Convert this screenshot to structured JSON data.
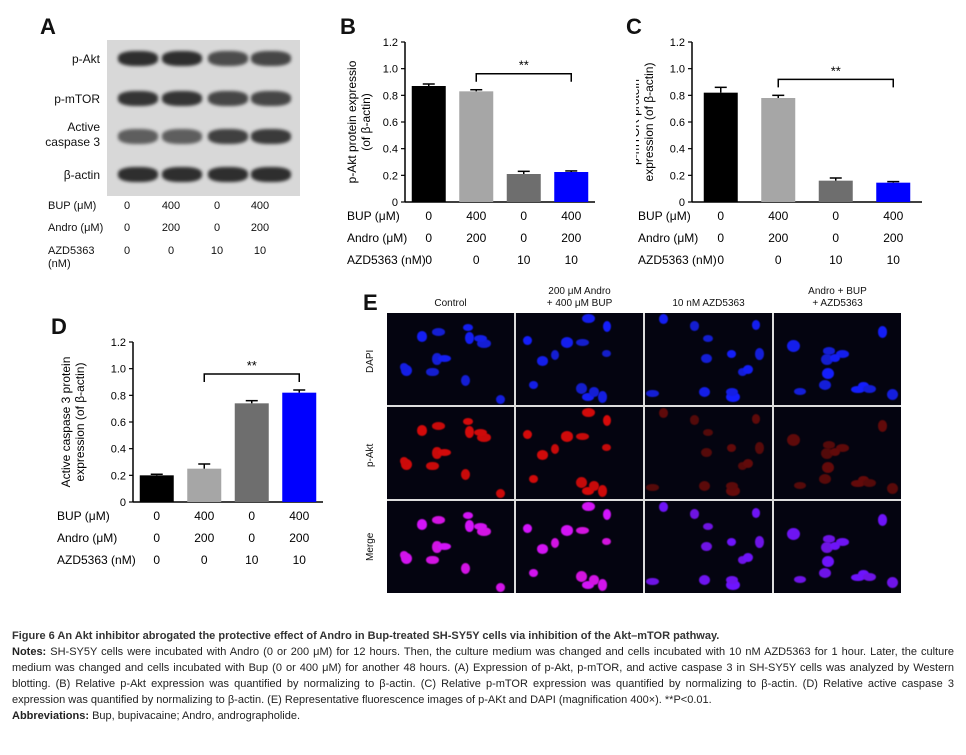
{
  "panelA": {
    "letter": "A",
    "rows": [
      "p-Akt",
      "p-mTOR",
      "Active\ncaspase 3",
      "β-actin"
    ],
    "table": {
      "rows": [
        {
          "label": "BUP (μM)",
          "values": [
            "0",
            "400",
            "0",
            "400"
          ]
        },
        {
          "label": "Andro (μM)",
          "values": [
            "0",
            "200",
            "0",
            "200"
          ]
        },
        {
          "label": "AZD5363\n(nM)",
          "values": [
            "0",
            "0",
            "10",
            "10"
          ]
        }
      ]
    }
  },
  "chart_data": [
    {
      "panel": "B",
      "type": "bar",
      "ylabel": "p-Akt protein expressio\n(of β-actin)",
      "ylim": [
        0,
        1.2
      ],
      "yticks": [
        "0",
        "0.2",
        "0.4",
        "0.6",
        "0.8",
        "1.0",
        "1.2"
      ],
      "values": [
        0.87,
        0.83,
        0.21,
        0.225
      ],
      "errors": [
        0.015,
        0.012,
        0.02,
        0.008
      ],
      "colors": [
        "#000000",
        "#a6a6a6",
        "#6e6e6e",
        "#0000ff"
      ],
      "significance": "**",
      "table": {
        "rows": [
          {
            "label": "BUP (μM)",
            "values": [
              "0",
              "400",
              "0",
              "400"
            ]
          },
          {
            "label": "Andro (μM)",
            "values": [
              "0",
              "200",
              "0",
              "200"
            ]
          },
          {
            "label": "AZD5363 (nM)",
            "values": [
              "0",
              "0",
              "10",
              "10"
            ]
          }
        ]
      }
    },
    {
      "panel": "C",
      "type": "bar",
      "ylabel": "p-mTOR protein\nexpression (of β-actin)",
      "ylim": [
        0,
        1.2
      ],
      "yticks": [
        "0",
        "0.2",
        "0.4",
        "0.6",
        "0.8",
        "1.0",
        "1.2"
      ],
      "values": [
        0.82,
        0.78,
        0.16,
        0.145
      ],
      "errors": [
        0.04,
        0.02,
        0.02,
        0.008
      ],
      "colors": [
        "#000000",
        "#a6a6a6",
        "#6e6e6e",
        "#0000ff"
      ],
      "significance": "**",
      "table": {
        "rows": [
          {
            "label": "BUP (μM)",
            "values": [
              "0",
              "400",
              "0",
              "400"
            ]
          },
          {
            "label": "Andro (μM)",
            "values": [
              "0",
              "200",
              "0",
              "200"
            ]
          },
          {
            "label": "AZD5363 (nM)",
            "values": [
              "0",
              "0",
              "10",
              "10"
            ]
          }
        ]
      }
    },
    {
      "panel": "D",
      "type": "bar",
      "ylabel": "Active caspase 3 protein\nexpression (of β-actin)",
      "ylim": [
        0,
        1.2
      ],
      "yticks": [
        "0",
        "0.2",
        "0.4",
        "0.6",
        "0.8",
        "1.0",
        "1.2"
      ],
      "values": [
        0.2,
        0.25,
        0.74,
        0.82
      ],
      "errors": [
        0.008,
        0.035,
        0.02,
        0.02
      ],
      "colors": [
        "#000000",
        "#a6a6a6",
        "#6e6e6e",
        "#0000ff"
      ],
      "significance": "**",
      "table": {
        "rows": [
          {
            "label": "BUP (μM)",
            "values": [
              "0",
              "400",
              "0",
              "400"
            ]
          },
          {
            "label": "Andro (μM)",
            "values": [
              "0",
              "200",
              "0",
              "200"
            ]
          },
          {
            "label": "AZD5363 (nM)",
            "values": [
              "0",
              "0",
              "10",
              "10"
            ]
          }
        ]
      }
    }
  ],
  "panelE": {
    "letter": "E",
    "columns": [
      "Control",
      "200 μM Andro\n+ 400 μM BUP",
      "10 nM AZD5363",
      "Andro + BUP\n+ AZD5363"
    ],
    "rows": [
      "DAPI",
      "p-Akt",
      "Merge"
    ]
  },
  "caption": {
    "title": "Figure 6 An Akt inhibitor abrogated the protective effect of Andro in Bup-treated SH-SY5Y cells via inhibition of the Akt–mTOR pathway.",
    "notes_label": "Notes:",
    "notes": " SH-SY5Y cells were incubated with Andro (0 or 200 μM) for 12 hours. Then, the culture medium was changed and cells incubated with 10 nM AZD5363 for 1 hour. Later, the culture medium was changed and cells incubated with Bup (0 or 400 μM) for another 48 hours. (A) Expression of p-Akt, p-mTOR, and active caspase 3 in SH-SY5Y cells was analyzed by Western blotting. (B) Relative p-Akt expression was quantified by normalizing to β-actin. (C) Relative p-mTOR expression was quantified by normalizing to β-actin. (D) Relative active caspase 3 expression was quantified by normalizing to β-actin. (E) Representative fluorescence images of p-AKt and DAPI (magnification 400×). **P<0.01.",
    "abbr_label": "Abbreviations:",
    "abbr": " Bup, bupivacaine; Andro, andrographolide."
  }
}
